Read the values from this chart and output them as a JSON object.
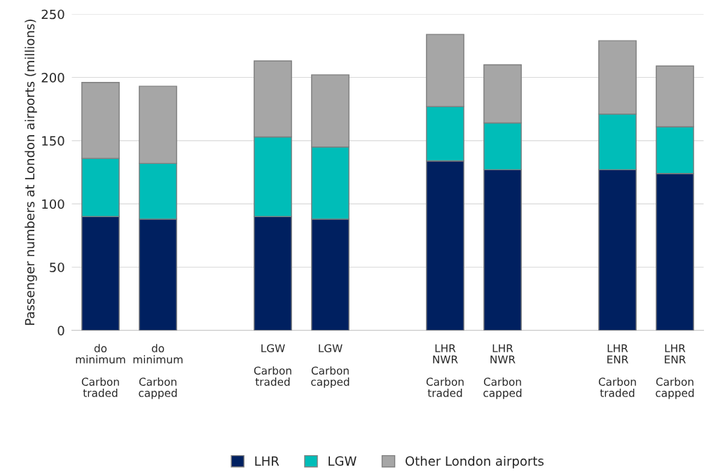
{
  "chart_data": {
    "type": "bar",
    "stacked": true,
    "ylabel": "Passenger numbers at London airports (millions)",
    "categories": [
      "do minimum\nCarbon traded",
      "do minimum\nCarbon capped",
      null,
      "LGW\nCarbon traded",
      "LGW\nCarbon capped",
      null,
      "LHR NWR\nCarbon traded",
      "LHR NWR\nCarbon capped",
      null,
      "LHR ENR\nCarbon traded",
      "LHR ENR\nCarbon capped"
    ],
    "series": [
      {
        "name": "LHR",
        "color": "#002060",
        "values": [
          90,
          88,
          null,
          90,
          88,
          null,
          134,
          127,
          null,
          127,
          124
        ]
      },
      {
        "name": "LGW",
        "color": "#00bdb8",
        "values": [
          46,
          44,
          null,
          63,
          57,
          null,
          43,
          37,
          null,
          44,
          37
        ]
      },
      {
        "name": "Other London airports",
        "color": "#a6a6a6",
        "values": [
          60,
          61,
          null,
          60,
          57,
          null,
          57,
          46,
          null,
          58,
          48
        ]
      }
    ],
    "ylim": [
      0,
      250
    ],
    "yticks": [
      0,
      50,
      100,
      150,
      200,
      250
    ],
    "grid": "y",
    "legend": "bottom"
  }
}
